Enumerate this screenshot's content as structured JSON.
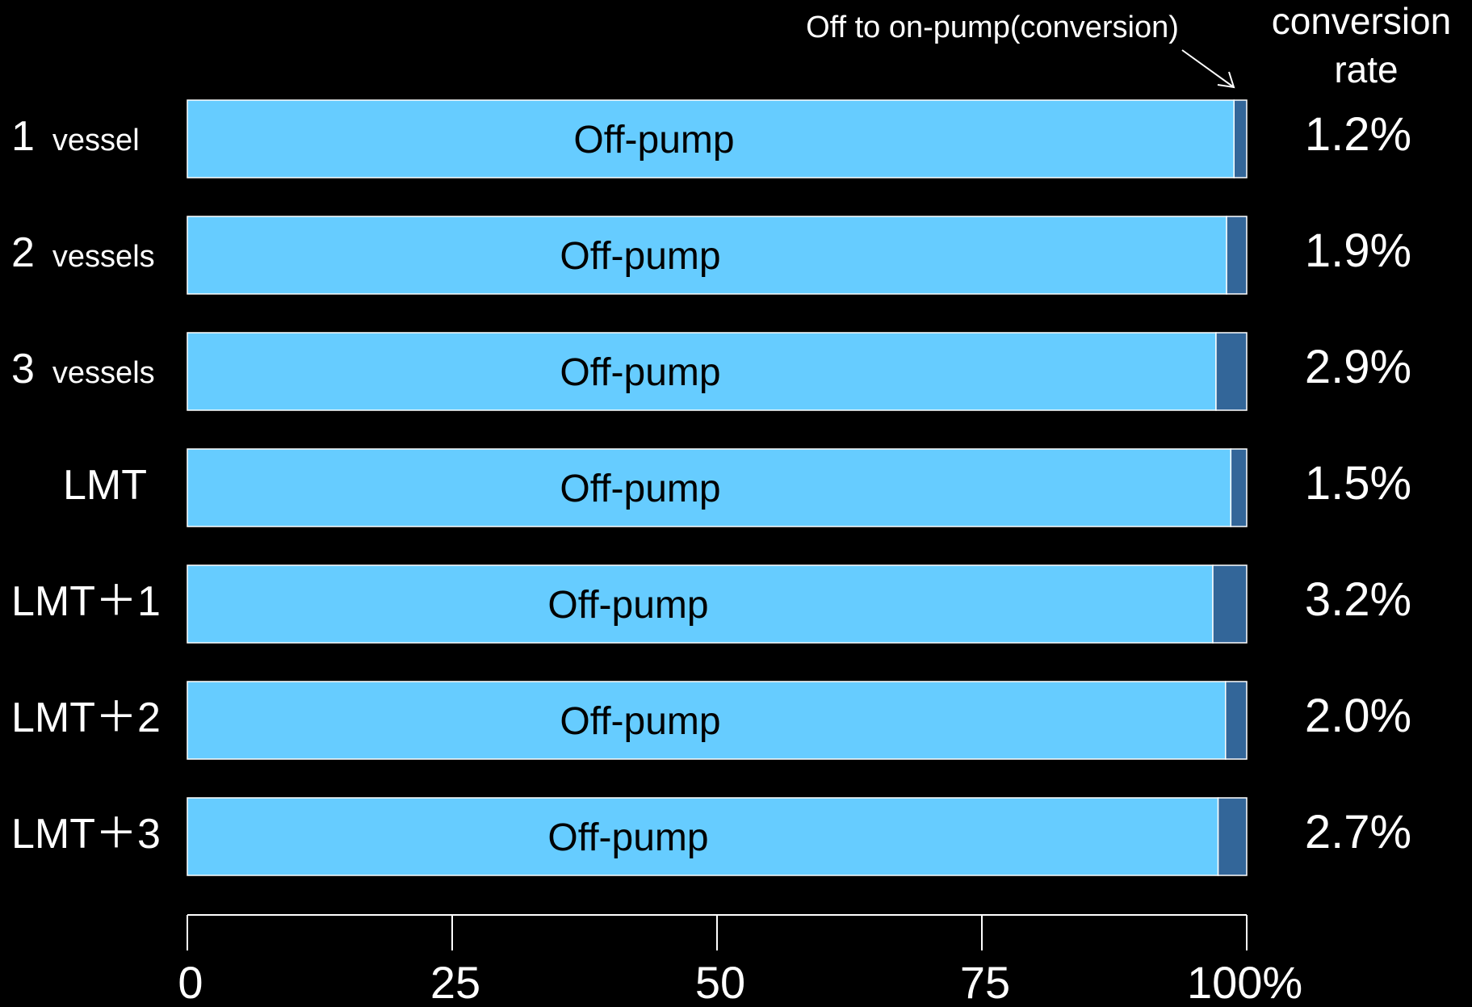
{
  "chart_data": {
    "type": "bar",
    "stacked": true,
    "orientation": "horizontal",
    "categories": [
      {
        "main": "1",
        "sub": "vessel"
      },
      {
        "main": "2",
        "sub": "vessels"
      },
      {
        "main": "3",
        "sub": "vessels"
      },
      {
        "main": "LMT",
        "sub": ""
      },
      {
        "main": "LMT＋1",
        "sub": ""
      },
      {
        "main": "LMT＋2",
        "sub": ""
      },
      {
        "main": "LMT＋3",
        "sub": ""
      }
    ],
    "series": [
      {
        "name": "Off-pump",
        "values": [
          98.8,
          98.1,
          97.1,
          98.5,
          96.8,
          98.0,
          97.3
        ],
        "color": "#66ccff",
        "bar_label": "Off-pump"
      },
      {
        "name": "Off to on-pump(conversion)",
        "values": [
          1.2,
          1.9,
          2.9,
          1.5,
          3.2,
          2.0,
          2.7
        ],
        "color": "#336699"
      }
    ],
    "rate_column": {
      "header": [
        "conversion",
        "rate"
      ],
      "values": [
        "1.2%",
        "1.9%",
        "2.9%",
        "1.5%",
        "3.2%",
        "2.0%",
        "2.7%"
      ]
    },
    "annotation": "Off to on-pump(conversion)",
    "xlim": [
      0,
      100
    ],
    "xticks": [
      0,
      25,
      50,
      75,
      100
    ],
    "xtick_labels": [
      "0",
      "25",
      "50",
      "75",
      "100%"
    ],
    "grid": false,
    "legend": "none",
    "background": "#000000",
    "text_color": "#ffffff"
  }
}
